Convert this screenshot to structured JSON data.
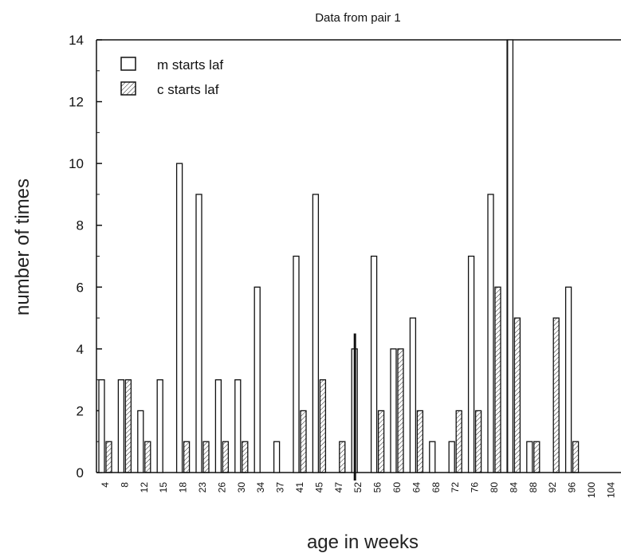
{
  "chart_data": {
    "type": "bar",
    "title": "Data from pair 1",
    "xlabel": "age in weeks",
    "ylabel": "number of times",
    "ylim": [
      0,
      14
    ],
    "yticks": [
      0,
      2,
      4,
      6,
      8,
      10,
      12,
      14
    ],
    "categories": [
      "4",
      "8",
      "12",
      "15",
      "18",
      "23",
      "26",
      "30",
      "34",
      "37",
      "41",
      "45",
      "47",
      "52",
      "56",
      "60",
      "64",
      "68",
      "72",
      "76",
      "80",
      "84",
      "88",
      "92",
      "96",
      "100",
      "104"
    ],
    "series": [
      {
        "name": "m starts laf",
        "pattern": "open",
        "values": [
          3,
          3,
          2,
          3,
          10,
          9,
          3,
          3,
          6,
          1,
          7,
          9,
          0,
          4,
          7,
          4,
          5,
          1,
          1,
          7,
          9,
          14,
          1,
          0,
          6,
          0,
          0
        ]
      },
      {
        "name": "c starts laf",
        "pattern": "hatched",
        "values": [
          1,
          3,
          1,
          0,
          1,
          1,
          1,
          1,
          0,
          0,
          2,
          3,
          1,
          0,
          2,
          4,
          2,
          0,
          2,
          2,
          6,
          5,
          1,
          5,
          1,
          0,
          0
        ]
      }
    ],
    "legend_position": "top-left",
    "grid": false
  }
}
